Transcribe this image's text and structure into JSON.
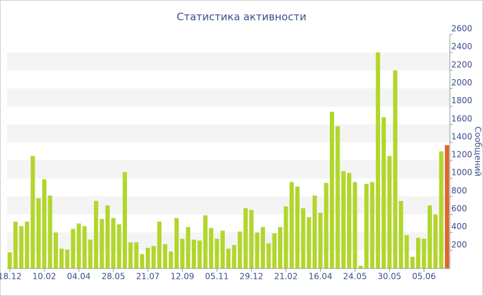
{
  "chart_data": {
    "type": "bar",
    "title": "Статистика активности",
    "y_label": "Сообщений",
    "categories": [
      "18.12",
      null,
      null,
      null,
      null,
      null,
      "10.02",
      null,
      null,
      null,
      null,
      null,
      "04.04",
      null,
      null,
      null,
      null,
      null,
      "28.05",
      null,
      null,
      null,
      null,
      null,
      "21.07",
      null,
      null,
      null,
      null,
      null,
      "12.09",
      null,
      null,
      null,
      null,
      null,
      "05.11",
      null,
      null,
      null,
      null,
      null,
      "29.12",
      null,
      null,
      null,
      null,
      null,
      "21.02",
      null,
      null,
      null,
      null,
      null,
      "16.04",
      null,
      null,
      null,
      null,
      null,
      "24.05",
      null,
      null,
      null,
      null,
      null,
      "30.05",
      null,
      null,
      null,
      null,
      null,
      "05.06",
      null,
      null,
      null,
      null
    ],
    "values": [
      180,
      520,
      470,
      520,
      1250,
      780,
      990,
      810,
      400,
      220,
      210,
      440,
      500,
      470,
      320,
      750,
      550,
      700,
      560,
      490,
      1070,
      290,
      290,
      160,
      230,
      250,
      520,
      270,
      190,
      560,
      330,
      460,
      320,
      310,
      590,
      450,
      330,
      420,
      220,
      260,
      410,
      670,
      650,
      400,
      460,
      280,
      390,
      460,
      690,
      960,
      910,
      670,
      570,
      810,
      620,
      950,
      1740,
      1580,
      1080,
      1060,
      960,
      30,
      940,
      960,
      2400,
      1680,
      1250,
      2200,
      750,
      370,
      130,
      340,
      330,
      700,
      600,
      1300,
      1370
    ],
    "color": "#b2d62c",
    "last_bar_color": "#e0642e",
    "ylim": [
      0,
      2600
    ],
    "yticks": [
      200,
      400,
      600,
      800,
      1000,
      1200,
      1400,
      1600,
      1800,
      2000,
      2200,
      2400,
      2600
    ],
    "grid": true
  }
}
